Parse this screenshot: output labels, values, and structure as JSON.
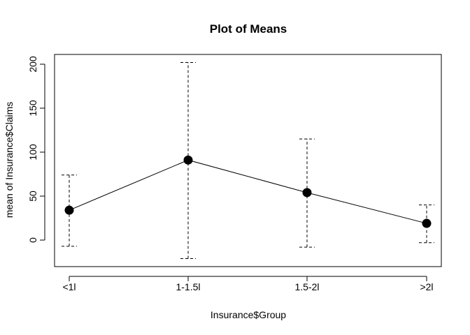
{
  "chart_data": {
    "type": "line",
    "title": "Plot of Means",
    "xlabel": "Insurance$Group",
    "ylabel": "mean of Insurance$Claims",
    "categories": [
      "<1l",
      "1-1.5l",
      "1.5-2l",
      ">2l"
    ],
    "series": [
      {
        "values": [
          34,
          91,
          54,
          19
        ],
        "error_lower": [
          -7,
          -21,
          -8,
          -3
        ],
        "error_upper": [
          74,
          202,
          115,
          40
        ]
      }
    ],
    "yticks": [
      0,
      50,
      100,
      150,
      200
    ],
    "ytick_labels": [
      "0",
      "50",
      "100",
      "150",
      "200"
    ],
    "ylim": [
      -30,
      212
    ],
    "grid": false,
    "legend": "none",
    "colors": {
      "line": "#000000",
      "point": "#000000",
      "error_bar": "#000000"
    }
  }
}
